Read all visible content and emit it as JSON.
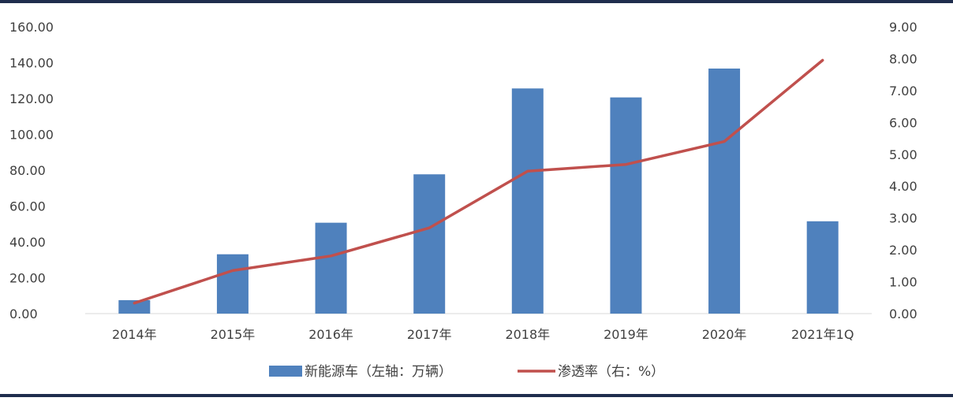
{
  "chart_data": {
    "type": "bar",
    "categories": [
      "2014年",
      "2015年",
      "2016年",
      "2017年",
      "2018年",
      "2019年",
      "2020年",
      "2021年1Q"
    ],
    "series": [
      {
        "name": "新能源车（左轴：万辆）",
        "type": "bar",
        "axis": "left",
        "color": "#4f81bd",
        "values": [
          7.5,
          33.1,
          50.7,
          77.7,
          125.6,
          120.6,
          136.7,
          51.5
        ]
      },
      {
        "name": "渗透率（右：%）",
        "type": "line",
        "axis": "right",
        "color": "#c0504d",
        "values": [
          0.33,
          1.35,
          1.81,
          2.69,
          4.47,
          4.68,
          5.4,
          7.95
        ]
      }
    ],
    "y_left": {
      "ylim": [
        0,
        160
      ],
      "ticks": [
        "0.00",
        "20.00",
        "40.00",
        "60.00",
        "80.00",
        "100.00",
        "120.00",
        "140.00",
        "160.00"
      ]
    },
    "y_right": {
      "ylim": [
        0,
        9
      ],
      "ticks": [
        "0.00",
        "1.00",
        "2.00",
        "3.00",
        "4.00",
        "5.00",
        "6.00",
        "7.00",
        "8.00",
        "9.00"
      ]
    },
    "grid": false,
    "legend_position": "bottom"
  }
}
